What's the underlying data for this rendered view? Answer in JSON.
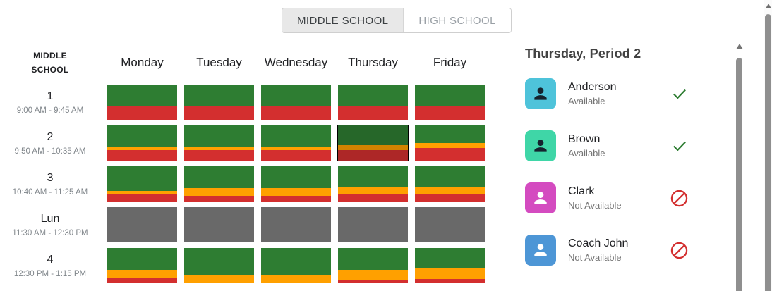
{
  "tabs": {
    "items": [
      {
        "label": "MIDDLE SCHOOL",
        "active": true
      },
      {
        "label": "HIGH SCHOOL",
        "active": false
      }
    ]
  },
  "schedule": {
    "corner_label": "MIDDLE SCHOOL",
    "days": [
      "Monday",
      "Tuesday",
      "Wednesday",
      "Thursday",
      "Friday"
    ],
    "colors": {
      "green": "#2e7d32",
      "orange": "#ffa000",
      "red": "#d32f2f",
      "gray": "#696969"
    },
    "selected": {
      "day": "Thursday",
      "period": "2"
    },
    "periods": [
      {
        "name": "1",
        "time": "9:00 AM - 9:45 AM",
        "cells": [
          {
            "segments": [
              [
                "green",
                0.6
              ],
              [
                "red",
                0.4
              ]
            ]
          },
          {
            "segments": [
              [
                "green",
                0.6
              ],
              [
                "red",
                0.4
              ]
            ]
          },
          {
            "segments": [
              [
                "green",
                0.6
              ],
              [
                "red",
                0.4
              ]
            ]
          },
          {
            "segments": [
              [
                "green",
                0.6
              ],
              [
                "red",
                0.4
              ]
            ]
          },
          {
            "segments": [
              [
                "green",
                0.6
              ],
              [
                "red",
                0.4
              ]
            ]
          }
        ]
      },
      {
        "name": "2",
        "time": "9:50 AM - 10:35 AM",
        "cells": [
          {
            "segments": [
              [
                "green",
                0.62
              ],
              [
                "orange",
                0.08
              ],
              [
                "red",
                0.3
              ]
            ]
          },
          {
            "segments": [
              [
                "green",
                0.62
              ],
              [
                "orange",
                0.08
              ],
              [
                "red",
                0.3
              ]
            ]
          },
          {
            "segments": [
              [
                "green",
                0.62
              ],
              [
                "orange",
                0.08
              ],
              [
                "red",
                0.3
              ]
            ]
          },
          {
            "segments": [
              [
                "green",
                0.55
              ],
              [
                "orange",
                0.15
              ],
              [
                "red",
                0.3
              ]
            ],
            "selected": true
          },
          {
            "segments": [
              [
                "green",
                0.49
              ],
              [
                "orange",
                0.14
              ],
              [
                "red",
                0.37
              ]
            ]
          }
        ]
      },
      {
        "name": "3",
        "time": "10:40 AM - 11:25 AM",
        "cells": [
          {
            "segments": [
              [
                "green",
                0.69
              ],
              [
                "orange",
                0.08
              ],
              [
                "red",
                0.23
              ]
            ]
          },
          {
            "segments": [
              [
                "green",
                0.61
              ],
              [
                "orange",
                0.23
              ],
              [
                "red",
                0.16
              ]
            ]
          },
          {
            "segments": [
              [
                "green",
                0.61
              ],
              [
                "orange",
                0.23
              ],
              [
                "red",
                0.16
              ]
            ]
          },
          {
            "segments": [
              [
                "green",
                0.59
              ],
              [
                "orange",
                0.22
              ],
              [
                "red",
                0.19
              ]
            ]
          },
          {
            "segments": [
              [
                "green",
                0.59
              ],
              [
                "orange",
                0.22
              ],
              [
                "red",
                0.19
              ]
            ]
          }
        ]
      },
      {
        "name": "Lun",
        "time": "11:30 AM - 12:30 PM",
        "cells": [
          {
            "segments": [
              [
                "gray",
                1
              ]
            ]
          },
          {
            "segments": [
              [
                "gray",
                1
              ]
            ]
          },
          {
            "segments": [
              [
                "gray",
                1
              ]
            ]
          },
          {
            "segments": [
              [
                "gray",
                1
              ]
            ]
          },
          {
            "segments": [
              [
                "gray",
                1
              ]
            ]
          }
        ]
      },
      {
        "name": "4",
        "time": "12:30 PM - 1:15 PM",
        "cells": [
          {
            "segments": [
              [
                "green",
                0.62
              ],
              [
                "orange",
                0.24
              ],
              [
                "red",
                0.14
              ]
            ]
          },
          {
            "segments": [
              [
                "green",
                0.76
              ],
              [
                "orange",
                0.24
              ]
            ]
          },
          {
            "segments": [
              [
                "green",
                0.76
              ],
              [
                "orange",
                0.24
              ]
            ]
          },
          {
            "segments": [
              [
                "green",
                0.62
              ],
              [
                "orange",
                0.28
              ],
              [
                "red",
                0.1
              ]
            ]
          },
          {
            "segments": [
              [
                "green",
                0.57
              ],
              [
                "orange",
                0.32
              ],
              [
                "red",
                0.11
              ]
            ]
          }
        ]
      }
    ]
  },
  "detail_panel": {
    "title": "Thursday, Period 2",
    "check_color": "#2e7d32",
    "block_color": "#d32f2f",
    "people": [
      {
        "name": "Anderson",
        "status": "Available",
        "available": true,
        "avatar_color": "#4ec3da",
        "icon_color": "#15232e"
      },
      {
        "name": "Brown",
        "status": "Available",
        "available": true,
        "avatar_color": "#3fd6a7",
        "icon_color": "#15232e"
      },
      {
        "name": "Clark",
        "status": "Not Available",
        "available": false,
        "avatar_color": "#d44bc0",
        "icon_color": "#ffffff"
      },
      {
        "name": "Coach John",
        "status": "Not Available",
        "available": false,
        "avatar_color": "#4d96d6",
        "icon_color": "#ffffff"
      }
    ]
  }
}
